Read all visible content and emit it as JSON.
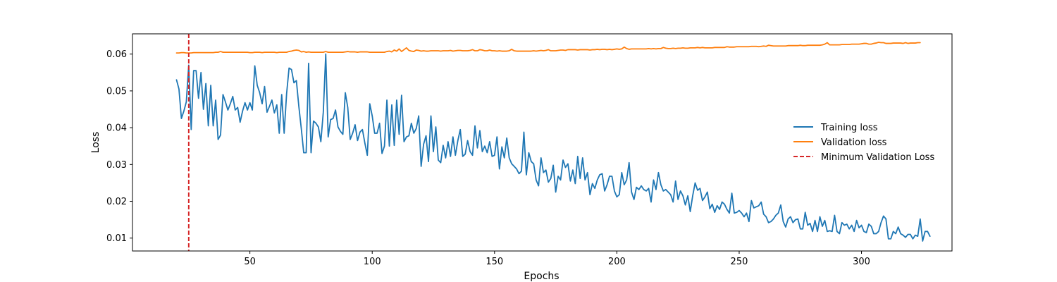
{
  "chart_data": {
    "type": "line",
    "title": "",
    "xlabel": "Epochs",
    "ylabel": "Loss",
    "xlim": [
      2,
      337
    ],
    "ylim": [
      0.0065,
      0.0655
    ],
    "x_ticks": [
      50,
      100,
      150,
      200,
      250,
      300
    ],
    "y_ticks": [
      0.01,
      0.02,
      0.03,
      0.04,
      0.05,
      0.06
    ],
    "y_tick_labels": [
      "0.01",
      "0.02",
      "0.03",
      "0.04",
      "0.05",
      "0.06"
    ],
    "grid": false,
    "legend_position": "center-right",
    "x_start": 20,
    "x_step": 1,
    "series": [
      {
        "name": "Training loss",
        "color": "#1f77b4",
        "style": "solid",
        "values": [
          0.053,
          0.0505,
          0.0425,
          0.0445,
          0.047,
          0.057,
          0.0395,
          0.0555,
          0.0555,
          0.048,
          0.055,
          0.045,
          0.052,
          0.0405,
          0.0515,
          0.0405,
          0.0475,
          0.0368,
          0.038,
          0.049,
          0.047,
          0.0448,
          0.0465,
          0.0485,
          0.0448,
          0.0455,
          0.0415,
          0.0445,
          0.0468,
          0.0448,
          0.0468,
          0.0448,
          0.0568,
          0.0515,
          0.0495,
          0.0465,
          0.0512,
          0.0442,
          0.0458,
          0.0475,
          0.044,
          0.0462,
          0.0385,
          0.049,
          0.0385,
          0.0492,
          0.0562,
          0.0558,
          0.0522,
          0.0528,
          0.0458,
          0.0398,
          0.0332,
          0.0332,
          0.0575,
          0.0332,
          0.0418,
          0.0412,
          0.0402,
          0.0362,
          0.0442,
          0.06,
          0.0375,
          0.0422,
          0.0425,
          0.0448,
          0.0402,
          0.039,
          0.0382,
          0.0495,
          0.0455,
          0.0368,
          0.0385,
          0.0408,
          0.0365,
          0.0388,
          0.0395,
          0.0358,
          0.0325,
          0.0465,
          0.0432,
          0.0385,
          0.0385,
          0.0412,
          0.033,
          0.035,
          0.0475,
          0.035,
          0.0462,
          0.0352,
          0.0475,
          0.0382,
          0.0488,
          0.0362,
          0.0375,
          0.0378,
          0.0412,
          0.0385,
          0.0398,
          0.0432,
          0.0295,
          0.0355,
          0.0378,
          0.0308,
          0.0432,
          0.0335,
          0.0402,
          0.0312,
          0.0305,
          0.0352,
          0.0318,
          0.0362,
          0.0322,
          0.0375,
          0.0325,
          0.0365,
          0.0395,
          0.0322,
          0.0328,
          0.0365,
          0.0335,
          0.0325,
          0.0405,
          0.0345,
          0.0392,
          0.0335,
          0.035,
          0.0332,
          0.0362,
          0.0322,
          0.0325,
          0.0375,
          0.0288,
          0.0348,
          0.0318,
          0.0372,
          0.0318,
          0.0302,
          0.0295,
          0.0288,
          0.0275,
          0.0282,
          0.0388,
          0.0272,
          0.0332,
          0.0308,
          0.0302,
          0.0258,
          0.0242,
          0.0318,
          0.0278,
          0.0285,
          0.0252,
          0.0262,
          0.0298,
          0.0225,
          0.0268,
          0.0258,
          0.0312,
          0.0292,
          0.0302,
          0.0255,
          0.0285,
          0.0248,
          0.0322,
          0.0262,
          0.0318,
          0.0258,
          0.0278,
          0.0218,
          0.0248,
          0.0235,
          0.0258,
          0.0272,
          0.0275,
          0.0228,
          0.0245,
          0.0268,
          0.0268,
          0.0228,
          0.0212,
          0.0218,
          0.0278,
          0.0245,
          0.0258,
          0.0305,
          0.0225,
          0.0205,
          0.0238,
          0.0232,
          0.0242,
          0.0232,
          0.0228,
          0.0235,
          0.0198,
          0.0258,
          0.0232,
          0.0278,
          0.0245,
          0.0228,
          0.0232,
          0.0225,
          0.0218,
          0.0198,
          0.0255,
          0.0205,
          0.0228,
          0.0215,
          0.019,
          0.0215,
          0.0172,
          0.0215,
          0.025,
          0.023,
          0.0235,
          0.0202,
          0.0212,
          0.0225,
          0.018,
          0.0192,
          0.017,
          0.0188,
          0.0178,
          0.0198,
          0.0192,
          0.0178,
          0.0168,
          0.0222,
          0.0168,
          0.017,
          0.0175,
          0.0168,
          0.0158,
          0.0168,
          0.0145,
          0.0202,
          0.0182,
          0.0185,
          0.0188,
          0.0198,
          0.0165,
          0.0158,
          0.0142,
          0.0145,
          0.0152,
          0.0162,
          0.0168,
          0.019,
          0.0145,
          0.013,
          0.0152,
          0.0158,
          0.0142,
          0.015,
          0.0152,
          0.0125,
          0.0125,
          0.017,
          0.0135,
          0.014,
          0.0118,
          0.0148,
          0.0118,
          0.0158,
          0.0132,
          0.0148,
          0.0118,
          0.012,
          0.0118,
          0.0162,
          0.0118,
          0.0112,
          0.0142,
          0.0135,
          0.0138,
          0.0125,
          0.0135,
          0.0118,
          0.0148,
          0.0128,
          0.0135,
          0.0118,
          0.0115,
          0.0138,
          0.0132,
          0.0112,
          0.0112,
          0.0118,
          0.0142,
          0.016,
          0.0152,
          0.0098,
          0.0098,
          0.0118,
          0.0112,
          0.013,
          0.0112,
          0.0108,
          0.0102,
          0.011,
          0.011,
          0.0098,
          0.0108,
          0.0105,
          0.0152,
          0.0092,
          0.0118,
          0.0118,
          0.0105
        ]
      },
      {
        "name": "Validation loss",
        "color": "#ff7f0e",
        "style": "solid",
        "values": [
          0.0603,
          0.0603,
          0.0604,
          0.0604,
          0.0603,
          0.0603,
          0.0603,
          0.0604,
          0.0604,
          0.0604,
          0.0604,
          0.0604,
          0.0604,
          0.0604,
          0.0604,
          0.0604,
          0.0605,
          0.0605,
          0.0607,
          0.0605,
          0.0605,
          0.0605,
          0.0605,
          0.0605,
          0.0605,
          0.0605,
          0.0605,
          0.0605,
          0.0605,
          0.0605,
          0.0604,
          0.0604,
          0.0605,
          0.0605,
          0.0605,
          0.0604,
          0.0605,
          0.0605,
          0.0605,
          0.0605,
          0.0605,
          0.0604,
          0.0605,
          0.0605,
          0.0605,
          0.0605,
          0.0607,
          0.0608,
          0.061,
          0.0611,
          0.061,
          0.0606,
          0.0607,
          0.0605,
          0.0606,
          0.0605,
          0.0605,
          0.0605,
          0.0605,
          0.0605,
          0.0605,
          0.0607,
          0.0605,
          0.0605,
          0.0605,
          0.0605,
          0.0605,
          0.0605,
          0.0605,
          0.0606,
          0.0607,
          0.0606,
          0.0606,
          0.0606,
          0.0605,
          0.0606,
          0.0606,
          0.0606,
          0.0606,
          0.0605,
          0.0605,
          0.0605,
          0.0605,
          0.0605,
          0.0605,
          0.0605,
          0.0607,
          0.0608,
          0.0606,
          0.0611,
          0.0608,
          0.0614,
          0.0607,
          0.0612,
          0.0617,
          0.061,
          0.0608,
          0.0607,
          0.0611,
          0.061,
          0.0608,
          0.0609,
          0.0608,
          0.0608,
          0.0609,
          0.0609,
          0.0609,
          0.0609,
          0.0608,
          0.0609,
          0.0609,
          0.0609,
          0.061,
          0.0608,
          0.0609,
          0.061,
          0.061,
          0.0609,
          0.0609,
          0.0609,
          0.061,
          0.0612,
          0.0609,
          0.0609,
          0.0612,
          0.0611,
          0.0609,
          0.0609,
          0.0611,
          0.0609,
          0.0609,
          0.0608,
          0.0609,
          0.0608,
          0.0608,
          0.0608,
          0.0609,
          0.0613,
          0.0609,
          0.0608,
          0.0608,
          0.0608,
          0.0608,
          0.0608,
          0.0608,
          0.0608,
          0.0609,
          0.0608,
          0.0609,
          0.061,
          0.0609,
          0.061,
          0.0612,
          0.0609,
          0.0609,
          0.0609,
          0.061,
          0.0611,
          0.0611,
          0.061,
          0.0612,
          0.0612,
          0.0612,
          0.0612,
          0.0611,
          0.0612,
          0.0612,
          0.0612,
          0.0612,
          0.0611,
          0.0612,
          0.0612,
          0.0613,
          0.0612,
          0.0613,
          0.0613,
          0.0612,
          0.0613,
          0.0612,
          0.0613,
          0.0614,
          0.0613,
          0.0614,
          0.0619,
          0.0615,
          0.0613,
          0.0614,
          0.0614,
          0.0614,
          0.0614,
          0.0614,
          0.0614,
          0.0614,
          0.0615,
          0.0614,
          0.0615,
          0.0614,
          0.0615,
          0.0615,
          0.0618,
          0.0616,
          0.0615,
          0.0615,
          0.0616,
          0.0615,
          0.0616,
          0.0616,
          0.0617,
          0.0616,
          0.0616,
          0.0617,
          0.0617,
          0.0617,
          0.0618,
          0.0617,
          0.0618,
          0.0617,
          0.0617,
          0.0617,
          0.0617,
          0.0618,
          0.0618,
          0.0618,
          0.0618,
          0.0618,
          0.062,
          0.0619,
          0.0619,
          0.0619,
          0.062,
          0.062,
          0.062,
          0.062,
          0.062,
          0.062,
          0.0621,
          0.0621,
          0.0621,
          0.062,
          0.0621,
          0.0622,
          0.0621,
          0.0624,
          0.0623,
          0.0622,
          0.0622,
          0.0622,
          0.0622,
          0.0622,
          0.0622,
          0.0623,
          0.0623,
          0.0623,
          0.0623,
          0.0623,
          0.0624,
          0.0623,
          0.0623,
          0.0624,
          0.0624,
          0.0624,
          0.0624,
          0.0624,
          0.0624,
          0.0625,
          0.0627,
          0.0631,
          0.0625,
          0.0625,
          0.0625,
          0.0625,
          0.0625,
          0.0626,
          0.0626,
          0.0626,
          0.0626,
          0.0627,
          0.0627,
          0.0627,
          0.0627,
          0.0628,
          0.0629,
          0.0629,
          0.0627,
          0.0627,
          0.0629,
          0.063,
          0.0632,
          0.0631,
          0.0631,
          0.0629,
          0.0629,
          0.0629,
          0.063,
          0.063,
          0.063,
          0.063,
          0.0629,
          0.0631,
          0.0629,
          0.063,
          0.063,
          0.063,
          0.0631,
          0.0631
        ]
      }
    ],
    "vlines": [
      {
        "name": "Minimum Validation Loss",
        "x": 25,
        "color": "#d62728",
        "style": "dashed"
      }
    ]
  }
}
